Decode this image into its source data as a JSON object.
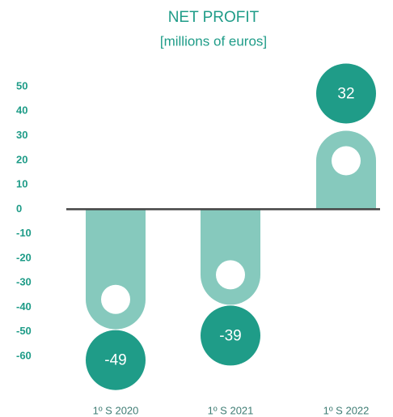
{
  "chart_data": {
    "type": "bar",
    "title": "NET PROFIT",
    "subtitle": "[millions of euros]",
    "categories": [
      "1º S 2020",
      "1º S 2021",
      "1º S 2022"
    ],
    "values": [
      -49,
      -39,
      32
    ],
    "color": "#86c9bd",
    "label_color": "#1f9c88",
    "ylim": [
      -60,
      50
    ],
    "yticks": [
      50,
      40,
      30,
      20,
      10,
      0,
      -10,
      -20,
      -30,
      -40,
      -50,
      -60
    ]
  }
}
